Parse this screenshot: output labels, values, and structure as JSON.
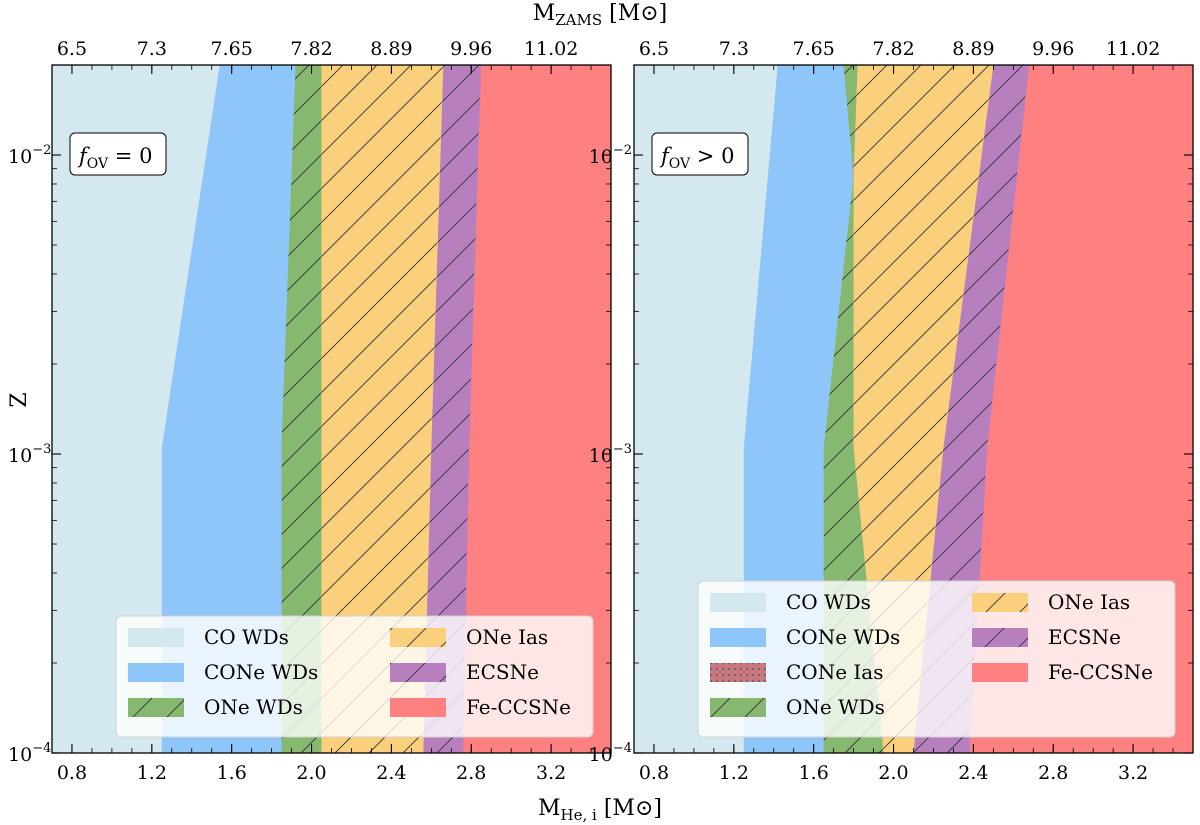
{
  "figure": {
    "top_axis_label": "M",
    "top_axis_label_sub": "ZAMS",
    "top_axis_unit": "[M⊙]",
    "bottom_axis_label": "M",
    "bottom_axis_label_sub": "He, i",
    "bottom_axis_unit": "[M⊙]",
    "y_axis_label": "Z"
  },
  "chart_data": [
    {
      "type": "area",
      "panel": "left",
      "annotation": "f_OV = 0",
      "annotation_text": "f",
      "annotation_sub": "OV",
      "annotation_rest": " = 0",
      "xlim": [
        0.7,
        3.5
      ],
      "ylim": [
        0.0001,
        0.02
      ],
      "y_scale": "log",
      "x_ticks": [
        0.8,
        1.2,
        1.6,
        2.0,
        2.4,
        2.8,
        3.2
      ],
      "x_tick_labels": [
        "0.8",
        "1.2",
        "1.6",
        "2.0",
        "2.4",
        "2.8",
        "3.2"
      ],
      "y_ticks": [
        0.001,
        0.01
      ],
      "y_tick_labels": [
        "10⁻³",
        "10⁻²"
      ],
      "top_ticks_at_x": [
        0.8,
        1.2,
        1.6,
        2.0,
        2.4,
        2.8,
        3.2
      ],
      "top_tick_labels": [
        "6.5",
        "7.3",
        "7.65",
        "7.82",
        "8.89",
        "9.96",
        "11.02"
      ],
      "legend_location": "lower right",
      "legend_columns": 2,
      "regions": [
        {
          "name": "CO WDs",
          "color": "#d4e8f0",
          "hatch": "none",
          "boundary_M_at_Z": [
            [
              0.0001,
              0.7
            ],
            [
              0.02,
              0.7
            ]
          ],
          "right_boundary": [
            [
              0.0001,
              1.25
            ],
            [
              0.00105,
              1.25
            ],
            [
              0.02,
              1.54
            ]
          ]
        },
        {
          "name": "CONe WDs",
          "color": "#8fc6fa",
          "hatch": "none",
          "right_boundary": [
            [
              0.0001,
              1.85
            ],
            [
              0.0011,
              1.85
            ],
            [
              0.02,
              1.92
            ]
          ]
        },
        {
          "name": "ONe WDs",
          "color": "#86b86f",
          "hatch": "diagonal",
          "right_boundary": [
            [
              0.0001,
              2.05
            ],
            [
              0.02,
              2.05
            ]
          ]
        },
        {
          "name": "ONe Ias",
          "color": "#fbd07d",
          "hatch": "diagonal",
          "right_boundary": [
            [
              0.0001,
              2.56
            ],
            [
              0.00105,
              2.6
            ],
            [
              0.02,
              2.66
            ]
          ]
        },
        {
          "name": "ECSNe",
          "color": "#b87fbf",
          "hatch": "diagonal",
          "right_boundary": [
            [
              0.0001,
              2.76
            ],
            [
              0.00105,
              2.79
            ],
            [
              0.02,
              2.85
            ]
          ]
        },
        {
          "name": "Fe-CCSNe",
          "color": "#ff8080",
          "hatch": "none",
          "right_boundary": [
            [
              0.0001,
              3.5
            ],
            [
              0.02,
              3.5
            ]
          ]
        }
      ]
    },
    {
      "type": "area",
      "panel": "right",
      "annotation": "f_OV > 0",
      "annotation_text": "f",
      "annotation_sub": "OV",
      "annotation_rest": " > 0",
      "xlim": [
        0.7,
        3.5
      ],
      "ylim": [
        0.0001,
        0.02
      ],
      "y_scale": "log",
      "x_ticks": [
        0.8,
        1.2,
        1.6,
        2.0,
        2.4,
        2.8,
        3.2
      ],
      "x_tick_labels": [
        "0.8",
        "1.2",
        "1.6",
        "2.0",
        "2.4",
        "2.8",
        "3.2"
      ],
      "y_ticks": [
        0.001,
        0.01
      ],
      "top_ticks_at_x": [
        0.8,
        1.2,
        1.6,
        2.0,
        2.4,
        2.8,
        3.2
      ],
      "top_tick_labels": [
        "6.5",
        "7.3",
        "7.65",
        "7.82",
        "8.89",
        "9.96",
        "11.02"
      ],
      "legend_location": "lower right",
      "legend_columns": 2,
      "regions": [
        {
          "name": "CO WDs",
          "color": "#d4e8f0",
          "hatch": "none",
          "right_boundary": [
            [
              0.0001,
              1.25
            ],
            [
              0.00105,
              1.25
            ],
            [
              0.02,
              1.42
            ]
          ]
        },
        {
          "name": "CONe WDs",
          "color": "#8fc6fa",
          "hatch": "none",
          "right_boundary": [
            [
              0.0001,
              1.65
            ],
            [
              0.00105,
              1.65
            ],
            [
              0.0085,
              1.8
            ],
            [
              0.02,
              1.75
            ]
          ]
        },
        {
          "name": "CONe Ias",
          "color": "#c9787e",
          "hatch": "dots",
          "right_boundary": [
            [
              0.0085,
              1.8
            ],
            [
              0.02,
              1.82
            ]
          ]
        },
        {
          "name": "ONe WDs",
          "color": "#86b86f",
          "hatch": "diagonal",
          "right_boundary": [
            [
              0.0001,
              1.95
            ],
            [
              0.00105,
              1.8
            ],
            [
              0.0085,
              1.8
            ],
            [
              0.02,
              1.82
            ]
          ]
        },
        {
          "name": "ONe Ias",
          "color": "#fbd07d",
          "hatch": "diagonal",
          "right_boundary": [
            [
              0.0001,
              2.1
            ],
            [
              0.00105,
              2.25
            ],
            [
              0.02,
              2.5
            ]
          ]
        },
        {
          "name": "ECSNe",
          "color": "#b87fbf",
          "hatch": "diagonal",
          "right_boundary": [
            [
              0.0001,
              2.38
            ],
            [
              0.00105,
              2.47
            ],
            [
              0.02,
              2.68
            ]
          ]
        },
        {
          "name": "Fe-CCSNe",
          "color": "#ff8080",
          "hatch": "none",
          "right_boundary": [
            [
              0.0001,
              3.5
            ],
            [
              0.02,
              3.5
            ]
          ]
        }
      ]
    }
  ],
  "legends": {
    "left": {
      "col1": [
        {
          "label": "CO WDs",
          "color": "#d4e8f0",
          "hatch": "none"
        },
        {
          "label": "CONe WDs",
          "color": "#8fc6fa",
          "hatch": "none"
        },
        {
          "label": "ONe WDs",
          "color": "#86b86f",
          "hatch": "diagonal"
        }
      ],
      "col2": [
        {
          "label": "ONe Ias",
          "color": "#fbd07d",
          "hatch": "diagonal"
        },
        {
          "label": "ECSNe",
          "color": "#b87fbf",
          "hatch": "diagonal"
        },
        {
          "label": "Fe-CCSNe",
          "color": "#ff8080",
          "hatch": "none"
        }
      ]
    },
    "right": {
      "col1": [
        {
          "label": "CO WDs",
          "color": "#d4e8f0",
          "hatch": "none"
        },
        {
          "label": "CONe WDs",
          "color": "#8fc6fa",
          "hatch": "none"
        },
        {
          "label": "CONe Ias",
          "color": "#c9787e",
          "hatch": "dots"
        },
        {
          "label": "ONe WDs",
          "color": "#86b86f",
          "hatch": "diagonal"
        }
      ],
      "col2": [
        {
          "label": "ONe Ias",
          "color": "#fbd07d",
          "hatch": "diagonal"
        },
        {
          "label": "ECSNe",
          "color": "#b87fbf",
          "hatch": "diagonal"
        },
        {
          "label": "Fe-CCSNe",
          "color": "#ff8080",
          "hatch": "none"
        }
      ]
    }
  }
}
